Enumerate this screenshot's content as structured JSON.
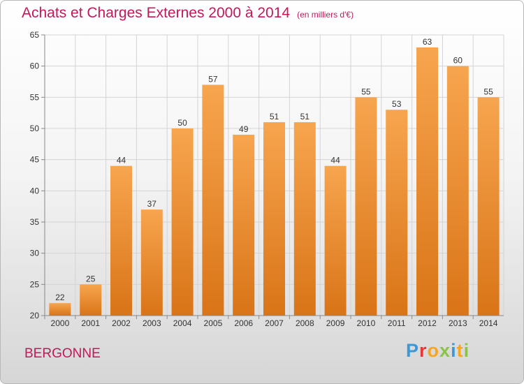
{
  "header": {
    "title": "Achats et Charges Externes 2000 à 2014",
    "subtitle": "(en milliers d'€)"
  },
  "footer": {
    "location": "BERGONNE",
    "logo_letters": [
      "P",
      "r",
      "o",
      "x",
      "i",
      "t",
      "i"
    ],
    "logo_colors": [
      "#3a9ad9",
      "#e53935",
      "#f5a623",
      "#8bc34a",
      "#3a9ad9",
      "#f5a623",
      "#8bc34a"
    ]
  },
  "chart_data": {
    "type": "bar",
    "categories": [
      "2000",
      "2001",
      "2002",
      "2003",
      "2004",
      "2005",
      "2006",
      "2007",
      "2008",
      "2009",
      "2010",
      "2011",
      "2012",
      "2013",
      "2014"
    ],
    "values": [
      22,
      25,
      44,
      37,
      50,
      57,
      49,
      51,
      51,
      44,
      55,
      53,
      63,
      60,
      55
    ],
    "ylim": [
      20,
      65
    ],
    "yticks": [
      20,
      25,
      30,
      35,
      40,
      45,
      50,
      55,
      60,
      65
    ],
    "grid": true,
    "bar_color_top": "#f7a54f",
    "bar_color_bottom": "#d97417"
  }
}
